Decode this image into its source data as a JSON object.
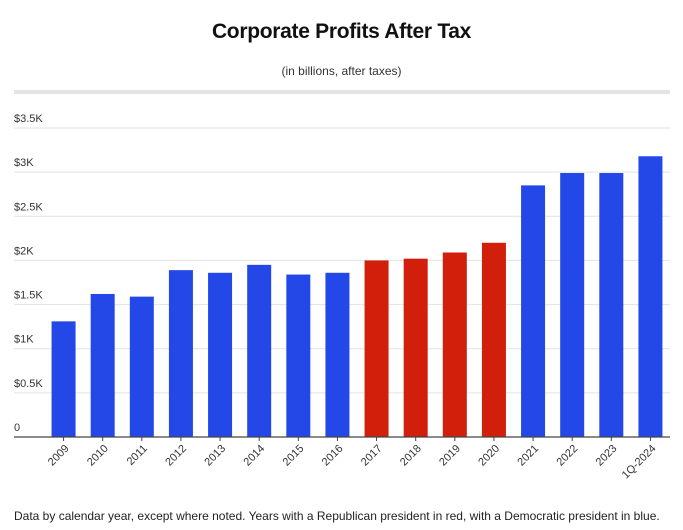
{
  "chart_data": {
    "type": "bar",
    "title": "Corporate Profits After Tax",
    "subtitle": "(in billions, after taxes)",
    "xlabel": "",
    "ylabel": "",
    "ylim": [
      0,
      3500
    ],
    "yticks": [
      0,
      500,
      1000,
      1500,
      2000,
      2500,
      3000,
      3500
    ],
    "ytick_labels": [
      "0",
      "$0.5K",
      "$1K",
      "$1.5K",
      "$2K",
      "$2.5K",
      "$3K",
      "$3.5K"
    ],
    "categories": [
      "2009",
      "2010",
      "2011",
      "2012",
      "2013",
      "2014",
      "2015",
      "2016",
      "2017",
      "2018",
      "2019",
      "2020",
      "2021",
      "2022",
      "2023",
      "1Q-2024"
    ],
    "values": [
      1310,
      1620,
      1590,
      1890,
      1860,
      1950,
      1840,
      1860,
      2000,
      2020,
      2090,
      2200,
      2850,
      2990,
      2990,
      3180
    ],
    "party": [
      "D",
      "D",
      "D",
      "D",
      "D",
      "D",
      "D",
      "D",
      "R",
      "R",
      "R",
      "R",
      "D",
      "D",
      "D",
      "D"
    ],
    "colors": {
      "D": "#2448e8",
      "R": "#d11f0c"
    },
    "grid": true
  },
  "footer": "Data by calendar year, except where noted. Years with a Republican president in red, with a Democratic president in blue."
}
